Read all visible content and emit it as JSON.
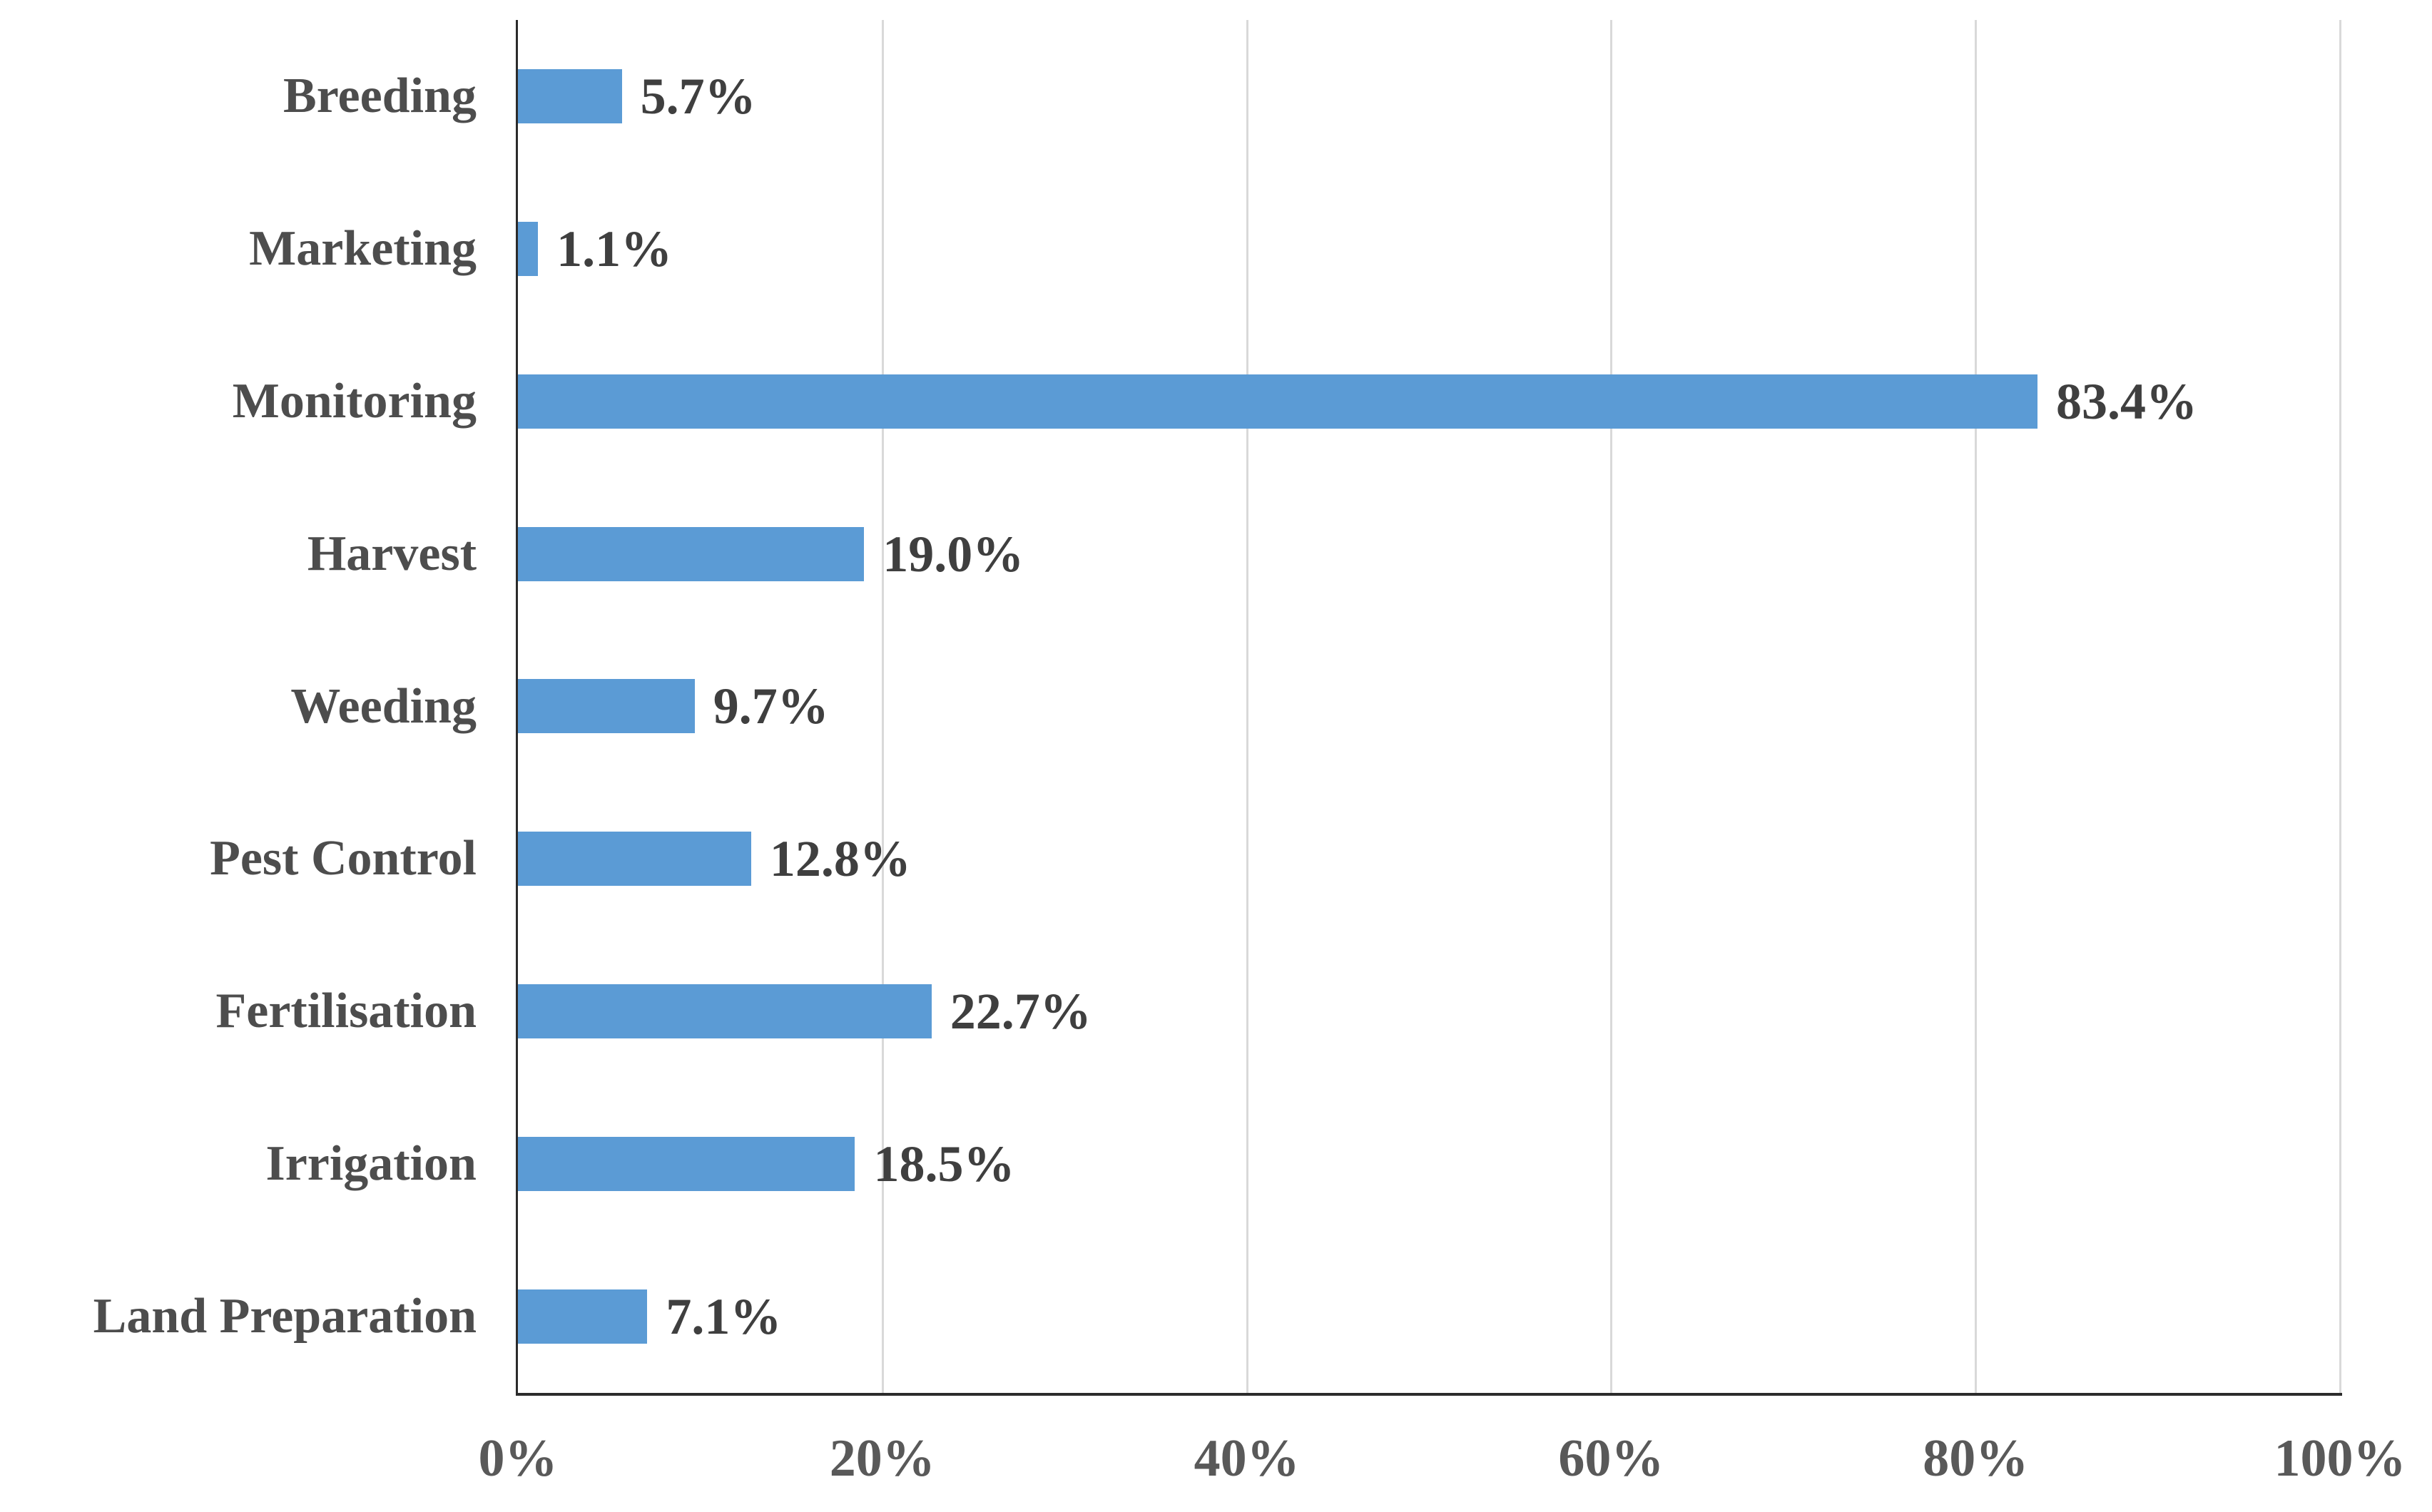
{
  "chart_data": {
    "type": "bar",
    "orientation": "horizontal",
    "categories": [
      "Breeding",
      "Marketing",
      "Monitoring",
      "Harvest",
      "Weeding",
      "Pest Control",
      "Fertilisation",
      "Irrigation",
      "Land Preparation"
    ],
    "values": [
      5.7,
      1.1,
      83.4,
      19.0,
      9.7,
      12.8,
      22.7,
      18.5,
      7.1
    ],
    "value_labels": [
      "5.7%",
      "1.1%",
      "83.4%",
      "19.0%",
      "9.7%",
      "12.8%",
      "22.7%",
      "18.5%",
      "7.1%"
    ],
    "x_ticks": [
      {
        "value": 0,
        "label": "0%"
      },
      {
        "value": 20,
        "label": "20%"
      },
      {
        "value": 40,
        "label": "40%"
      },
      {
        "value": 60,
        "label": "60%"
      },
      {
        "value": 80,
        "label": "80%"
      },
      {
        "value": 100,
        "label": "100%"
      }
    ],
    "xlim": [
      0,
      100
    ],
    "grid": "vertical-gridlines-every-20-percent",
    "legend": "none",
    "colors": {
      "bar": "#5B9BD5",
      "gridline": "#D9D9D9",
      "axis_line": "#2B2B2B",
      "category_label": "#4D4D4D",
      "value_label": "#3F3F3F",
      "tick_label": "#595959",
      "background": "#FFFFFF"
    }
  }
}
